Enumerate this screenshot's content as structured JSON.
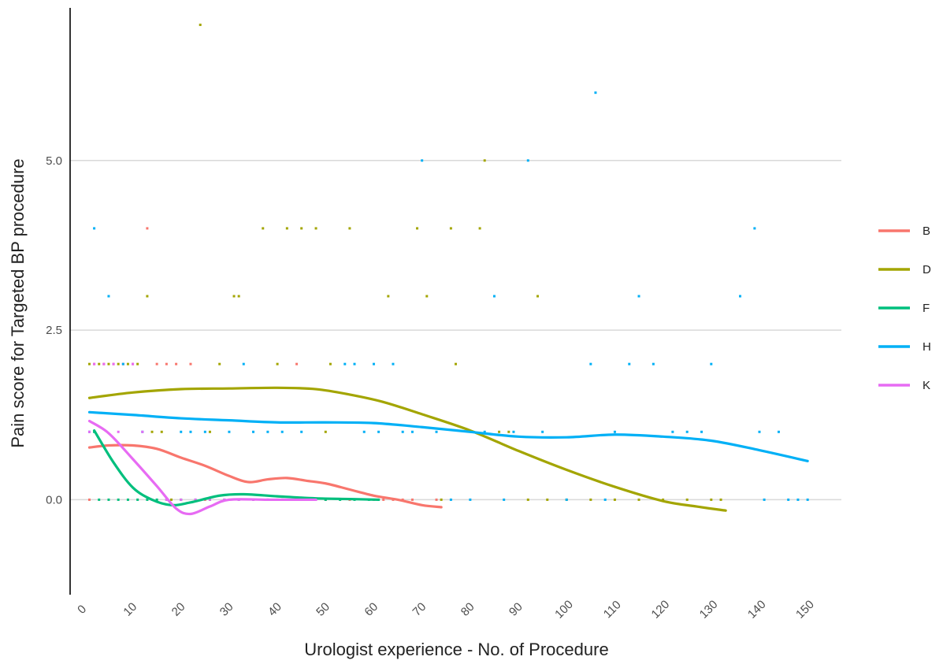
{
  "chart_data": {
    "type": "scatter",
    "xlabel": "Urologist experience - No. of Procedure",
    "ylabel": "Pain score for Targeted BP procedure",
    "xlim": [
      -3,
      157
    ],
    "ylim": [
      -1.4,
      7.25
    ],
    "xticks": [
      0,
      10,
      20,
      30,
      40,
      50,
      60,
      70,
      80,
      90,
      100,
      110,
      120,
      130,
      140,
      150
    ],
    "yticks": [
      0.0,
      2.5,
      5.0
    ],
    "ytick_labels": [
      "0.0",
      "2.5",
      "5.0"
    ],
    "grid": "horizontal-major",
    "legend_position": "right",
    "series": [
      {
        "name": "B",
        "color": "#F8766D",
        "points": [
          [
            1,
            0
          ],
          [
            2,
            2
          ],
          [
            4,
            2
          ],
          [
            6,
            2
          ],
          [
            8,
            2
          ],
          [
            10,
            2
          ],
          [
            13,
            4
          ],
          [
            15,
            2
          ],
          [
            17,
            2
          ],
          [
            19,
            2
          ],
          [
            22,
            2
          ],
          [
            25,
            0
          ],
          [
            30,
            0
          ],
          [
            35,
            0
          ],
          [
            40,
            0
          ],
          [
            44,
            2
          ],
          [
            45,
            0
          ],
          [
            50,
            0
          ],
          [
            55,
            0
          ],
          [
            60,
            0
          ],
          [
            62,
            0
          ],
          [
            64,
            0
          ],
          [
            66,
            0
          ],
          [
            68,
            0
          ],
          [
            73,
            0
          ]
        ],
        "smooth": [
          [
            1,
            0.77
          ],
          [
            5,
            0.8
          ],
          [
            10,
            0.8
          ],
          [
            15,
            0.75
          ],
          [
            20,
            0.62
          ],
          [
            25,
            0.5
          ],
          [
            30,
            0.35
          ],
          [
            34,
            0.26
          ],
          [
            38,
            0.3
          ],
          [
            42,
            0.32
          ],
          [
            46,
            0.28
          ],
          [
            50,
            0.24
          ],
          [
            55,
            0.15
          ],
          [
            60,
            0.06
          ],
          [
            65,
            0.0
          ],
          [
            70,
            -0.08
          ],
          [
            74,
            -0.11
          ]
        ]
      },
      {
        "name": "D",
        "color": "#A3A500",
        "points": [
          [
            1,
            2
          ],
          [
            3,
            2
          ],
          [
            5,
            2
          ],
          [
            7,
            2
          ],
          [
            9,
            2
          ],
          [
            11,
            2
          ],
          [
            13,
            3
          ],
          [
            14,
            1
          ],
          [
            16,
            1
          ],
          [
            18,
            0
          ],
          [
            24,
            7
          ],
          [
            26,
            1
          ],
          [
            28,
            2
          ],
          [
            31,
            3
          ],
          [
            32,
            3
          ],
          [
            37,
            4
          ],
          [
            40,
            2
          ],
          [
            42,
            4
          ],
          [
            45,
            4
          ],
          [
            48,
            4
          ],
          [
            50,
            1
          ],
          [
            51,
            2
          ],
          [
            55,
            4
          ],
          [
            63,
            3
          ],
          [
            69,
            4
          ],
          [
            71,
            3
          ],
          [
            74,
            0
          ],
          [
            76,
            4
          ],
          [
            77,
            2
          ],
          [
            82,
            4
          ],
          [
            83,
            5
          ],
          [
            86,
            1
          ],
          [
            88,
            1
          ],
          [
            92,
            0
          ],
          [
            94,
            3
          ],
          [
            96,
            0
          ],
          [
            100,
            0
          ],
          [
            105,
            0
          ],
          [
            110,
            0
          ],
          [
            115,
            0
          ],
          [
            120,
            0
          ],
          [
            125,
            0
          ],
          [
            130,
            0
          ],
          [
            132,
            0
          ]
        ],
        "smooth": [
          [
            1,
            1.5
          ],
          [
            10,
            1.58
          ],
          [
            20,
            1.63
          ],
          [
            30,
            1.64
          ],
          [
            40,
            1.65
          ],
          [
            48,
            1.63
          ],
          [
            55,
            1.55
          ],
          [
            62,
            1.44
          ],
          [
            70,
            1.26
          ],
          [
            80,
            1.02
          ],
          [
            90,
            0.72
          ],
          [
            100,
            0.44
          ],
          [
            110,
            0.19
          ],
          [
            120,
            -0.02
          ],
          [
            127,
            -0.1
          ],
          [
            133,
            -0.16
          ]
        ]
      },
      {
        "name": "F",
        "color": "#00BF7D",
        "points": [
          [
            2,
            1
          ],
          [
            3,
            0
          ],
          [
            5,
            0
          ],
          [
            7,
            0
          ],
          [
            9,
            0
          ],
          [
            11,
            0
          ],
          [
            13,
            0
          ],
          [
            15,
            0
          ],
          [
            17,
            0
          ],
          [
            20,
            0
          ],
          [
            23,
            0
          ],
          [
            26,
            0
          ],
          [
            29,
            0
          ],
          [
            32,
            0
          ],
          [
            35,
            0
          ],
          [
            38,
            0
          ],
          [
            41,
            0
          ],
          [
            44,
            0
          ],
          [
            47,
            0
          ],
          [
            50,
            0
          ],
          [
            53,
            0
          ],
          [
            56,
            0
          ],
          [
            59,
            0
          ],
          [
            61,
            0
          ]
        ],
        "smooth": [
          [
            2,
            1.02
          ],
          [
            6,
            0.55
          ],
          [
            10,
            0.18
          ],
          [
            14,
            0.0
          ],
          [
            18,
            -0.08
          ],
          [
            22,
            -0.04
          ],
          [
            28,
            0.06
          ],
          [
            33,
            0.08
          ],
          [
            40,
            0.05
          ],
          [
            48,
            0.02
          ],
          [
            55,
            0.01
          ],
          [
            61,
            0.0
          ]
        ]
      },
      {
        "name": "H",
        "color": "#00B0F6",
        "points": [
          [
            1,
            1
          ],
          [
            2,
            4
          ],
          [
            5,
            3
          ],
          [
            8,
            2
          ],
          [
            12,
            1
          ],
          [
            20,
            1
          ],
          [
            22,
            1
          ],
          [
            25,
            1
          ],
          [
            30,
            1
          ],
          [
            33,
            2
          ],
          [
            35,
            1
          ],
          [
            38,
            1
          ],
          [
            41,
            1
          ],
          [
            45,
            1
          ],
          [
            47,
            0
          ],
          [
            54,
            2
          ],
          [
            56,
            2
          ],
          [
            58,
            1
          ],
          [
            60,
            2
          ],
          [
            61,
            1
          ],
          [
            64,
            2
          ],
          [
            66,
            1
          ],
          [
            68,
            1
          ],
          [
            70,
            5
          ],
          [
            73,
            1
          ],
          [
            76,
            0
          ],
          [
            80,
            0
          ],
          [
            83,
            1
          ],
          [
            85,
            3
          ],
          [
            87,
            0
          ],
          [
            89,
            1
          ],
          [
            92,
            5
          ],
          [
            95,
            1
          ],
          [
            100,
            0
          ],
          [
            105,
            2
          ],
          [
            106,
            6
          ],
          [
            108,
            0
          ],
          [
            110,
            1
          ],
          [
            113,
            2
          ],
          [
            115,
            3
          ],
          [
            118,
            2
          ],
          [
            122,
            1
          ],
          [
            125,
            1
          ],
          [
            128,
            1
          ],
          [
            130,
            2
          ],
          [
            136,
            3
          ],
          [
            139,
            4
          ],
          [
            140,
            1
          ],
          [
            141,
            0
          ],
          [
            144,
            1
          ],
          [
            146,
            0
          ],
          [
            148,
            0
          ],
          [
            150,
            0
          ]
        ],
        "smooth": [
          [
            1,
            1.29
          ],
          [
            10,
            1.25
          ],
          [
            20,
            1.2
          ],
          [
            30,
            1.17
          ],
          [
            40,
            1.14
          ],
          [
            50,
            1.14
          ],
          [
            60,
            1.13
          ],
          [
            70,
            1.07
          ],
          [
            80,
            1.0
          ],
          [
            90,
            0.93
          ],
          [
            100,
            0.92
          ],
          [
            110,
            0.96
          ],
          [
            120,
            0.93
          ],
          [
            130,
            0.87
          ],
          [
            140,
            0.73
          ],
          [
            150,
            0.57
          ]
        ]
      },
      {
        "name": "K",
        "color": "#E76BF3",
        "points": [
          [
            1,
            1
          ],
          [
            2,
            2
          ],
          [
            4,
            2
          ],
          [
            6,
            2
          ],
          [
            7,
            1
          ],
          [
            10,
            2
          ],
          [
            12,
            1
          ],
          [
            14,
            0
          ],
          [
            17,
            0
          ],
          [
            20,
            0
          ],
          [
            23,
            0
          ],
          [
            26,
            0
          ],
          [
            29,
            0
          ],
          [
            32,
            0
          ],
          [
            35,
            0
          ],
          [
            38,
            0
          ],
          [
            41,
            0
          ],
          [
            44,
            0
          ],
          [
            48,
            0
          ]
        ],
        "smooth": [
          [
            1,
            1.16
          ],
          [
            5,
            0.98
          ],
          [
            10,
            0.6
          ],
          [
            15,
            0.2
          ],
          [
            19,
            -0.13
          ],
          [
            22,
            -0.21
          ],
          [
            26,
            -0.1
          ],
          [
            30,
            0.0
          ],
          [
            38,
            0.0
          ],
          [
            48,
            0.0
          ]
        ]
      }
    ]
  }
}
